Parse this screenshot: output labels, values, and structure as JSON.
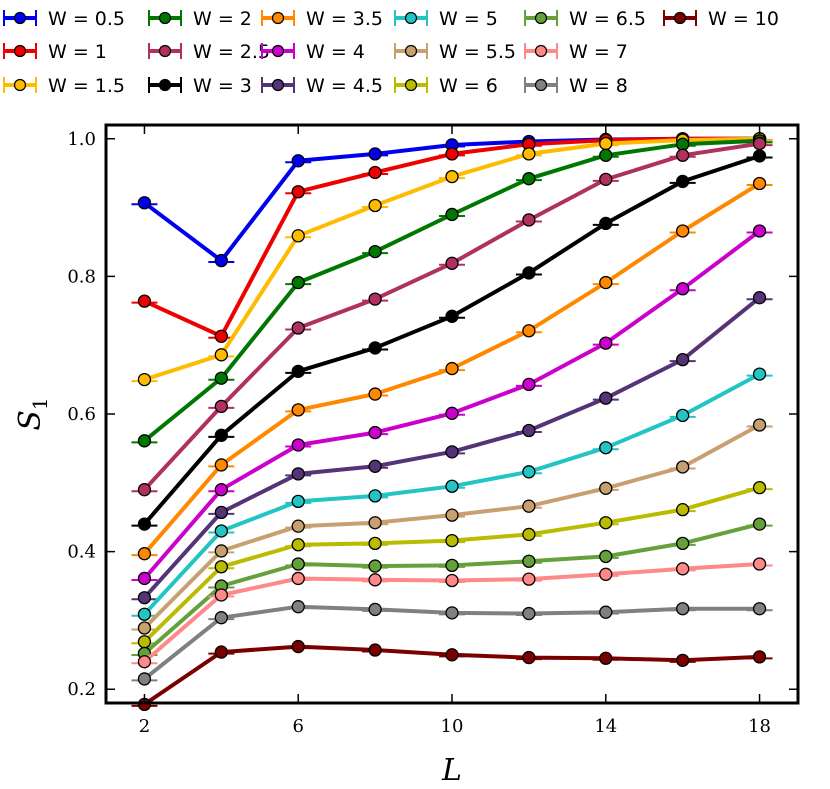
{
  "chart_data": {
    "type": "line",
    "title": "",
    "xlabel": "L",
    "ylabel_main": "S",
    "ylabel_sub": "1",
    "xlim": [
      1,
      19
    ],
    "ylim": [
      0.18,
      1.02
    ],
    "x": [
      2,
      4,
      6,
      8,
      10,
      12,
      14,
      16,
      18
    ],
    "xticks": [
      2,
      6,
      10,
      14,
      18
    ],
    "yticks": [
      0.2,
      0.4,
      0.6,
      0.8,
      1.0
    ],
    "ytick_labels": [
      "0.2",
      "0.4",
      "0.6",
      "0.8",
      "1.0"
    ],
    "legend_position": "top (above plot), 6 columns",
    "series": [
      {
        "name": "W = 0.5",
        "color": "#0000ee",
        "values": [
          0.907,
          0.823,
          0.968,
          0.978,
          0.991,
          0.996,
          0.999,
          1.0,
          1.0
        ]
      },
      {
        "name": "W = 1",
        "color": "#ee0000",
        "values": [
          0.764,
          0.713,
          0.923,
          0.951,
          0.978,
          0.992,
          0.998,
          1.0,
          1.0
        ]
      },
      {
        "name": "W = 1.5",
        "color": "#ffbb00",
        "values": [
          0.65,
          0.686,
          0.859,
          0.903,
          0.945,
          0.978,
          0.993,
          0.998,
          1.0
        ]
      },
      {
        "name": "W = 2",
        "color": "#007700",
        "values": [
          0.561,
          0.652,
          0.791,
          0.836,
          0.89,
          0.942,
          0.976,
          0.992,
          0.997
        ]
      },
      {
        "name": "W = 2.5",
        "color": "#b03060",
        "values": [
          0.49,
          0.611,
          0.725,
          0.767,
          0.819,
          0.882,
          0.941,
          0.976,
          0.993
        ]
      },
      {
        "name": "W = 3",
        "color": "#000000",
        "values": [
          0.44,
          0.569,
          0.662,
          0.696,
          0.742,
          0.805,
          0.877,
          0.938,
          0.975
        ]
      },
      {
        "name": "W = 3.5",
        "color": "#ff8800",
        "values": [
          0.397,
          0.526,
          0.606,
          0.629,
          0.666,
          0.721,
          0.791,
          0.866,
          0.935
        ]
      },
      {
        "name": "W = 4",
        "color": "#cc00cc",
        "values": [
          0.361,
          0.49,
          0.555,
          0.573,
          0.601,
          0.643,
          0.703,
          0.782,
          0.866
        ]
      },
      {
        "name": "W = 4.5",
        "color": "#553377",
        "values": [
          0.333,
          0.457,
          0.513,
          0.524,
          0.545,
          0.576,
          0.623,
          0.679,
          0.769
        ]
      },
      {
        "name": "W = 5",
        "color": "#22c4c4",
        "values": [
          0.309,
          0.43,
          0.473,
          0.481,
          0.495,
          0.516,
          0.551,
          0.598,
          0.658
        ]
      },
      {
        "name": "W = 5.5",
        "color": "#c8a070",
        "values": [
          0.289,
          0.401,
          0.437,
          0.442,
          0.453,
          0.466,
          0.492,
          0.523,
          0.584
        ]
      },
      {
        "name": "W = 6",
        "color": "#bbbb00",
        "values": [
          0.269,
          0.378,
          0.41,
          0.412,
          0.416,
          0.425,
          0.442,
          0.461,
          0.493
        ]
      },
      {
        "name": "W = 6.5",
        "color": "#66a03a",
        "values": [
          0.252,
          0.35,
          0.382,
          0.379,
          0.38,
          0.386,
          0.393,
          0.412,
          0.44
        ]
      },
      {
        "name": "W = 7",
        "color": "#ff8888",
        "values": [
          0.24,
          0.337,
          0.361,
          0.359,
          0.358,
          0.36,
          0.367,
          0.375,
          0.382
        ]
      },
      {
        "name": "W = 8",
        "color": "#808080",
        "values": [
          0.215,
          0.304,
          0.32,
          0.316,
          0.311,
          0.31,
          0.312,
          0.317,
          0.317
        ]
      },
      {
        "name": "W = 10",
        "color": "#7a0000",
        "values": [
          0.178,
          0.254,
          0.262,
          0.257,
          0.25,
          0.246,
          0.245,
          0.242,
          0.247
        ]
      }
    ]
  }
}
